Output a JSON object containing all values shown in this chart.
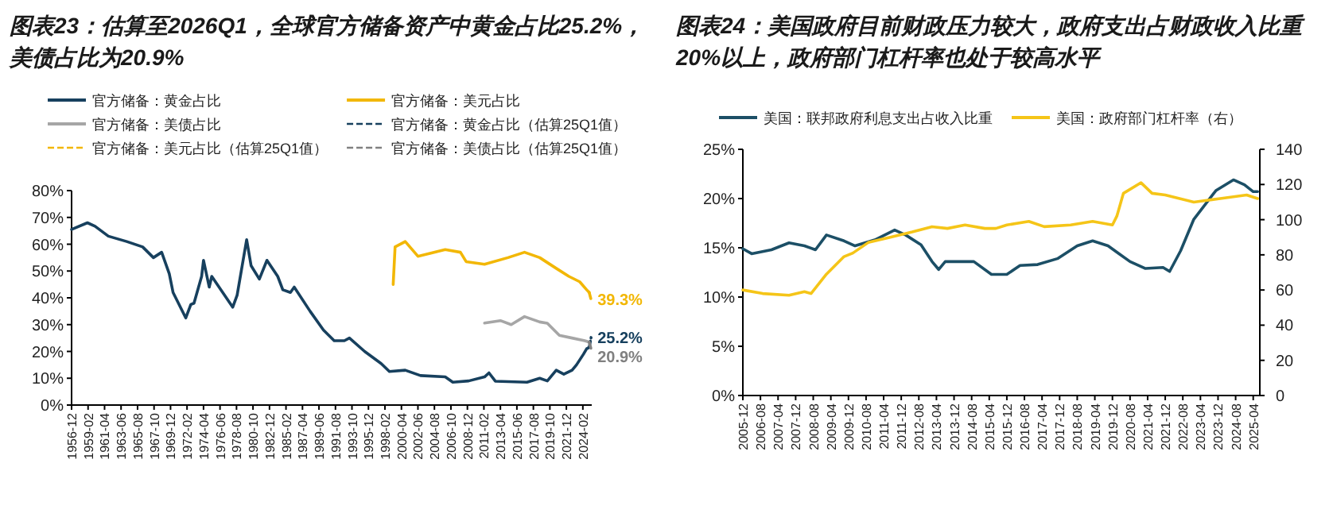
{
  "chart_data": [
    {
      "type": "line",
      "title": "图表23：估算至2026Q1，全球官方储备资产中黄金占比25.2%，美债占比为20.9%",
      "legend": "top",
      "xlim": [
        "1956-12",
        "2025-04"
      ],
      "xticks": [
        "1956-12",
        "1959-02",
        "1961-04",
        "1963-06",
        "1965-08",
        "1967-10",
        "1969-12",
        "1972-02",
        "1974-04",
        "1976-06",
        "1978-08",
        "1980-10",
        "1982-12",
        "1985-02",
        "1987-04",
        "1989-06",
        "1991-08",
        "1993-10",
        "1995-12",
        "1998-02",
        "2000-04",
        "2002-06",
        "2004-08",
        "2006-10",
        "2008-12",
        "2011-02",
        "2013-04",
        "2015-06",
        "2017-08",
        "2019-10",
        "2021-12",
        "2024-02"
      ],
      "ylim": [
        0,
        80
      ],
      "yticks": [
        {
          "value": 0,
          "label": "0%"
        },
        {
          "value": 10,
          "label": "10%"
        },
        {
          "value": 20,
          "label": "20%"
        },
        {
          "value": 30,
          "label": "30%"
        },
        {
          "value": 40,
          "label": "40%"
        },
        {
          "value": 50,
          "label": "50%"
        },
        {
          "value": 60,
          "label": "60%"
        },
        {
          "value": 70,
          "label": "70%"
        },
        {
          "value": 80,
          "label": "80%"
        }
      ],
      "series": [
        {
          "name": "官方储备：黄金占比",
          "color": "#17405e",
          "x": [
            "1956-12",
            "1959-01",
            "1960-01",
            "1961-10",
            "1964-03",
            "1966-04",
            "1967-09",
            "1968-10",
            "1969-10",
            "1970-04",
            "1971-12",
            "1972-08",
            "1973-01",
            "1974-01",
            "1974-04",
            "1975-01",
            "1975-05",
            "1978-02",
            "1978-09",
            "1979-12",
            "1980-07",
            "1981-08",
            "1982-08",
            "1984-01",
            "1984-09",
            "1985-09",
            "1986-03",
            "1988-04",
            "1990-01",
            "1991-06",
            "1992-10",
            "1993-06",
            "1995-06",
            "1997-08",
            "1998-09",
            "2000-10",
            "2002-10",
            "2006-01",
            "2007-01",
            "2009-02",
            "2011-03",
            "2011-10",
            "2012-08",
            "2016-10",
            "2018-06",
            "2019-06",
            "2020-08",
            "2021-08",
            "2022-09",
            "2023-04",
            "2024-03",
            "2024-08",
            "2024-12"
          ],
          "values": [
            65.5,
            68,
            66.7,
            63,
            61,
            59,
            55,
            57,
            49,
            42,
            32.5,
            37.5,
            38,
            48,
            54,
            44,
            48,
            36.5,
            41,
            61.7,
            52,
            47,
            54,
            48,
            43,
            42,
            44,
            35,
            28,
            24,
            24,
            25,
            20,
            15.5,
            12.5,
            13,
            11,
            10.5,
            8.5,
            9,
            10.5,
            12,
            8.9,
            8.5,
            10,
            9,
            13,
            11.5,
            13,
            15,
            19,
            21,
            21.5
          ]
        },
        {
          "name": "官方储备：美元占比",
          "color": "#f2b705",
          "x": [
            "1999-03",
            "1999-06",
            "2000-10",
            "2002-06",
            "2006-01",
            "2008-01",
            "2008-10",
            "2011-03",
            "2014-04",
            "2016-06",
            "2018-06",
            "2020-08",
            "2022-04",
            "2023-09",
            "2024-08",
            "2024-12"
          ],
          "values": [
            45,
            59,
            61,
            55.5,
            58,
            57,
            53.5,
            52.5,
            55,
            57,
            55,
            51,
            48,
            46,
            43,
            42
          ]
        },
        {
          "name": "官方储备：美债占比",
          "color": "#a6a6a6",
          "x": [
            "2011-03",
            "2013-04",
            "2014-09",
            "2016-06",
            "2018-06",
            "2019-06",
            "2021-01",
            "2022-09",
            "2024-05",
            "2024-12"
          ],
          "values": [
            30.6,
            31.5,
            30,
            33,
            31,
            30.5,
            26,
            25,
            24,
            23.5
          ]
        },
        {
          "name": "官方储备：黄金占比（估算25Q1值）",
          "color": "#17405e",
          "line_style": "dashed",
          "x": [
            "2024-12",
            "2025-03"
          ],
          "values": [
            21.5,
            25.2
          ]
        },
        {
          "name": "官方储备：美元占比（估算25Q1值）",
          "color": "#f2b705",
          "line_style": "dashed",
          "x": [
            "2024-12",
            "2025-03"
          ],
          "values": [
            42,
            39.3
          ]
        },
        {
          "name": "官方储备：美债占比（估算25Q1值）",
          "color": "#808080",
          "line_style": "dashed",
          "x": [
            "2024-12",
            "2025-03"
          ],
          "values": [
            23.5,
            20.9
          ]
        }
      ],
      "annotations": [
        {
          "text": "39.3%",
          "x": "2025-03",
          "y": 39.3
        },
        {
          "text": "25.2%",
          "x": "2025-03",
          "y": 25.2
        },
        {
          "text": "20.9%",
          "x": "2025-03",
          "y": 20.9
        }
      ]
    },
    {
      "type": "line",
      "title": "图表24：美国政府目前财政压力较大，政府支出占财政收入比重20%以上，政府部门杠杆率也处于较高水平",
      "legend": "top",
      "xlim": [
        "2005-12",
        "2025-07"
      ],
      "xticks": [
        "2005-12",
        "2006-08",
        "2007-04",
        "2007-12",
        "2008-08",
        "2009-04",
        "2009-12",
        "2010-08",
        "2011-04",
        "2011-12",
        "2012-08",
        "2013-04",
        "2013-12",
        "2014-08",
        "2015-04",
        "2015-12",
        "2016-08",
        "2017-04",
        "2017-12",
        "2018-08",
        "2019-04",
        "2019-12",
        "2020-08",
        "2021-04",
        "2021-12",
        "2022-08",
        "2023-04",
        "2023-12",
        "2024-08",
        "2025-04"
      ],
      "ylim": [
        0,
        25
      ],
      "yticks": [
        {
          "value": 0,
          "label": "0%"
        },
        {
          "value": 5,
          "label": "5%"
        },
        {
          "value": 10,
          "label": "10%"
        },
        {
          "value": 15,
          "label": "15%"
        },
        {
          "value": 20,
          "label": "20%"
        },
        {
          "value": 25,
          "label": "25%"
        }
      ],
      "y2lim": [
        0,
        140
      ],
      "y2ticks": [
        0,
        20,
        40,
        60,
        80,
        100,
        120,
        140
      ],
      "series": [
        {
          "name": "美国：联邦政府利息支出占收入比重",
          "color": "#1c4f66",
          "x": [
            "2005-12",
            "2006-04",
            "2007-01",
            "2007-09",
            "2008-04",
            "2008-09",
            "2009-02",
            "2009-10",
            "2010-03",
            "2010-12",
            "2011-09",
            "2012-02",
            "2012-09",
            "2013-02",
            "2013-05",
            "2013-08",
            "2014-09",
            "2015-05",
            "2015-12",
            "2016-06",
            "2017-02",
            "2017-11",
            "2018-08",
            "2019-03",
            "2019-10",
            "2020-03",
            "2020-08",
            "2021-03",
            "2021-11",
            "2022-02",
            "2022-07",
            "2023-01",
            "2023-11",
            "2024-07",
            "2024-12",
            "2025-04",
            "2025-06"
          ],
          "values": [
            14.9,
            14.4,
            14.8,
            15.5,
            15.2,
            14.8,
            16.3,
            15.7,
            15.2,
            15.8,
            16.8,
            16.3,
            15.3,
            13.6,
            12.8,
            13.6,
            13.6,
            12.3,
            12.3,
            13.2,
            13.3,
            13.9,
            15.2,
            15.7,
            15.2,
            14.4,
            13.6,
            12.9,
            13.0,
            12.6,
            14.7,
            17.9,
            20.8,
            21.9,
            21.4,
            20.7,
            20.7
          ]
        },
        {
          "name": "美国：政府部门杠杆率（右）",
          "color": "#f5c518",
          "axis": "y2",
          "x": [
            "2005-12",
            "2006-09",
            "2007-09",
            "2008-04",
            "2008-07",
            "2009-02",
            "2009-10",
            "2010-02",
            "2010-09",
            "2011-07",
            "2012-05",
            "2013-02",
            "2013-09",
            "2014-05",
            "2015-02",
            "2015-07",
            "2015-12",
            "2016-10",
            "2017-05",
            "2018-05",
            "2019-03",
            "2019-12",
            "2020-02",
            "2020-05",
            "2021-01",
            "2021-06",
            "2021-12",
            "2023-01",
            "2024-01",
            "2025-01",
            "2025-06"
          ],
          "values": [
            60,
            58,
            57,
            59,
            58,
            69,
            79,
            81,
            87,
            90,
            93,
            96,
            95,
            97,
            95,
            95,
            97,
            99,
            96,
            97,
            99,
            97,
            102,
            115,
            121,
            115,
            114,
            110,
            112,
            114,
            112
          ]
        }
      ]
    }
  ]
}
